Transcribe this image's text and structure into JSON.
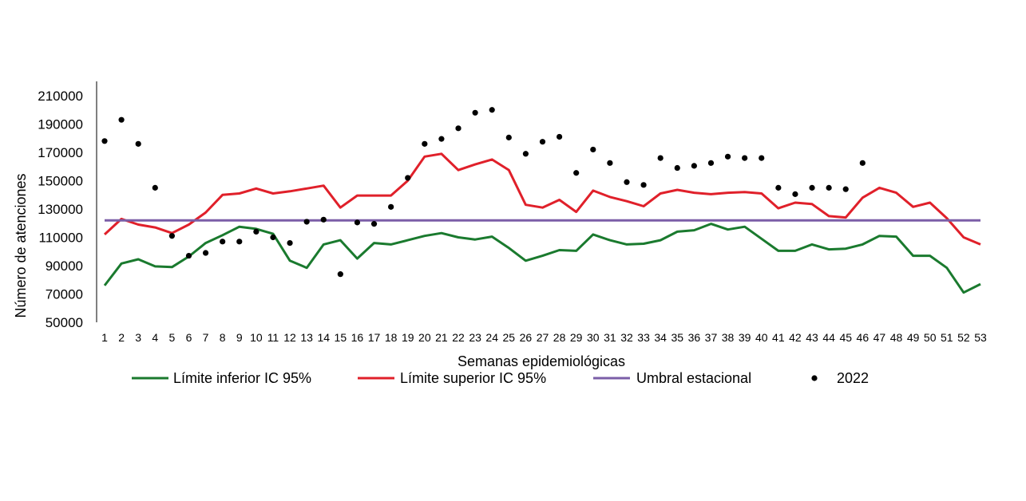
{
  "chart_data": {
    "type": "line",
    "title": "",
    "xlabel": "Semanas epidemiológicas",
    "ylabel": "Número de atenciones",
    "ylim": [
      50000,
      210000
    ],
    "yticks": [
      50000,
      70000,
      90000,
      110000,
      130000,
      150000,
      170000,
      190000,
      210000
    ],
    "x": [
      1,
      2,
      3,
      4,
      5,
      6,
      7,
      8,
      9,
      10,
      11,
      12,
      13,
      14,
      15,
      16,
      17,
      18,
      19,
      20,
      21,
      22,
      23,
      24,
      25,
      26,
      27,
      28,
      29,
      30,
      31,
      32,
      33,
      34,
      35,
      36,
      37,
      38,
      39,
      40,
      41,
      42,
      43,
      44,
      45,
      46,
      47,
      48,
      49,
      50,
      51,
      52,
      53
    ],
    "grid": false,
    "legend_position": "bottom",
    "series": [
      {
        "name": "Límite inferior IC 95%",
        "type": "line",
        "color": "#1a7a2e",
        "values": [
          76000,
          91500,
          94500,
          89500,
          89000,
          96500,
          106000,
          111500,
          117500,
          116000,
          112500,
          93500,
          88500,
          105000,
          108000,
          95000,
          106000,
          105000,
          108000,
          111000,
          113000,
          110000,
          108500,
          110500,
          102500,
          93500,
          97000,
          101000,
          100500,
          112000,
          108000,
          105000,
          105500,
          108000,
          114000,
          115000,
          119500,
          115500,
          117500,
          109000,
          100500,
          100500,
          105000,
          101500,
          102000,
          105000,
          111000,
          110500,
          97000,
          97000,
          88500,
          71000,
          77000
        ]
      },
      {
        "name": "Límite superior IC 95%",
        "type": "line",
        "color": "#e0202a",
        "values": [
          112000,
          123000,
          119000,
          117000,
          113000,
          119000,
          127500,
          140000,
          141000,
          144500,
          141000,
          142500,
          144500,
          146500,
          131000,
          139500,
          139500,
          139500,
          150000,
          167000,
          169000,
          157500,
          161500,
          165000,
          157500,
          133000,
          131000,
          136500,
          128000,
          143000,
          138500,
          135500,
          132000,
          141000,
          143500,
          141500,
          140500,
          141500,
          142000,
          141000,
          130500,
          134500,
          133500,
          125000,
          124000,
          138000,
          145000,
          141500,
          131500,
          134500,
          123500,
          110000,
          105000
        ]
      },
      {
        "name": "Umbral estacional",
        "type": "line",
        "color": "#7b5ea7",
        "values": [
          122000,
          122000,
          122000,
          122000,
          122000,
          122000,
          122000,
          122000,
          122000,
          122000,
          122000,
          122000,
          122000,
          122000,
          122000,
          122000,
          122000,
          122000,
          122000,
          122000,
          122000,
          122000,
          122000,
          122000,
          122000,
          122000,
          122000,
          122000,
          122000,
          122000,
          122000,
          122000,
          122000,
          122000,
          122000,
          122000,
          122000,
          122000,
          122000,
          122000,
          122000,
          122000,
          122000,
          122000,
          122000,
          122000,
          122000,
          122000,
          122000,
          122000,
          122000,
          122000,
          122000
        ]
      },
      {
        "name": "2022",
        "type": "scatter",
        "color": "#000000",
        "values": [
          178000,
          193000,
          176000,
          145000,
          111000,
          97000,
          99000,
          107000,
          107000,
          114000,
          110000,
          106000,
          121000,
          122500,
          84000,
          120500,
          119500,
          131500,
          152000,
          176000,
          179500,
          187000,
          198000,
          200000,
          180500,
          169000,
          177500,
          181000,
          155500,
          172000,
          162500,
          149000,
          147000,
          166000,
          159000,
          160500,
          162500,
          167000,
          166000,
          166000,
          145000,
          140500,
          145000,
          145000,
          144000,
          162500
        ]
      }
    ]
  }
}
